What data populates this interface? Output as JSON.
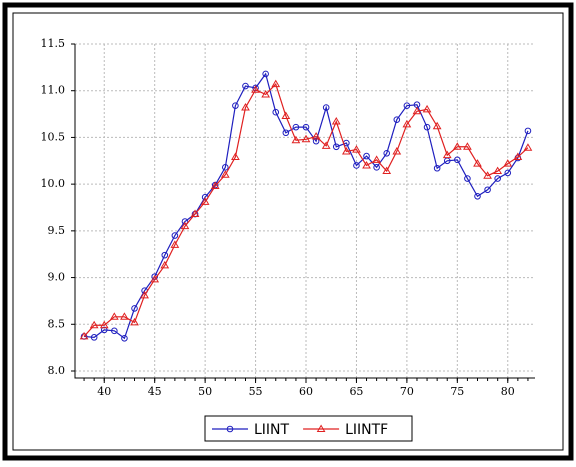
{
  "chart_data": {
    "type": "line",
    "x": [
      38,
      39,
      40,
      41,
      42,
      43,
      44,
      45,
      46,
      47,
      48,
      49,
      50,
      51,
      52,
      53,
      54,
      55,
      56,
      57,
      58,
      59,
      60,
      61,
      62,
      63,
      64,
      65,
      66,
      67,
      68,
      69,
      70,
      71,
      72,
      73,
      74,
      75,
      76,
      77,
      78,
      79,
      80,
      81,
      82
    ],
    "series": [
      {
        "name": "LIINT",
        "color": "#1f1fbf",
        "marker": "circle",
        "values": [
          8.37,
          8.36,
          8.44,
          8.43,
          8.35,
          8.67,
          8.86,
          9.01,
          9.24,
          9.45,
          9.6,
          9.68,
          9.86,
          9.99,
          10.18,
          10.84,
          11.05,
          11.03,
          11.18,
          10.77,
          10.55,
          10.61,
          10.61,
          10.46,
          10.82,
          10.4,
          10.44,
          10.2,
          10.3,
          10.18,
          10.33,
          10.69,
          10.84,
          10.85,
          10.61,
          10.17,
          10.25,
          10.26,
          10.06,
          9.87,
          9.94,
          10.06,
          10.12,
          10.28,
          10.57
        ]
      },
      {
        "name": "LIINTF",
        "color": "#e02020",
        "marker": "triangle",
        "values": [
          8.37,
          8.49,
          8.49,
          8.58,
          8.58,
          8.52,
          8.81,
          8.98,
          9.13,
          9.35,
          9.55,
          9.68,
          9.81,
          9.98,
          10.1,
          10.29,
          10.82,
          11.01,
          10.96,
          11.07,
          10.73,
          10.47,
          10.48,
          10.51,
          10.41,
          10.67,
          10.35,
          10.37,
          10.2,
          10.26,
          10.14,
          10.35,
          10.64,
          10.78,
          10.8,
          10.62,
          10.31,
          10.4,
          10.4,
          10.22,
          10.09,
          10.14,
          10.22,
          10.29,
          10.39
        ]
      }
    ],
    "xlim": [
      37.1,
      82.7
    ],
    "xticks": [
      40,
      45,
      50,
      55,
      60,
      65,
      70,
      75,
      80
    ],
    "ylim": [
      7.925,
      11.5
    ],
    "yticks": [
      {
        "value": 8,
        "label": "8.0"
      },
      {
        "value": 8.5,
        "label": "8.5"
      },
      {
        "value": 9,
        "label": "9.0"
      },
      {
        "value": 9.5,
        "label": "9.5"
      },
      {
        "value": 10,
        "label": "10.0"
      },
      {
        "value": 10.5,
        "label": "10.5"
      },
      {
        "value": 11,
        "label": "11.0"
      },
      {
        "value": 11.5,
        "label": "11.5"
      }
    ],
    "grid": true
  }
}
